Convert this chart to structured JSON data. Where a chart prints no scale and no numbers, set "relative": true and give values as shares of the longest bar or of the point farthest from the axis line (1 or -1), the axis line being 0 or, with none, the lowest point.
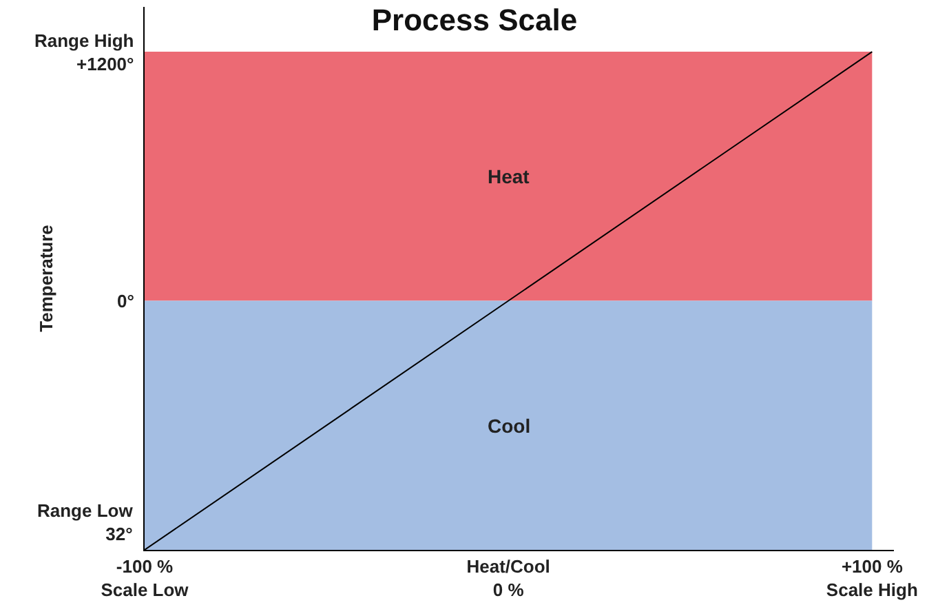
{
  "chart_data": {
    "type": "line",
    "title": "Process Scale",
    "ylabel": "Temperature",
    "relative": true,
    "x": [
      -100,
      100
    ],
    "series": [
      {
        "color": "#000000",
        "values": [
          0,
          1
        ]
      }
    ],
    "xlim": [
      -100,
      106
    ],
    "xticks": [
      {
        "value": -100,
        "label": "-100 %\nScale Low"
      },
      {
        "value": 0,
        "label": "Heat/Cool\n0 %"
      },
      {
        "value": 100,
        "label": "+100 %\nScale High"
      }
    ],
    "annotations": [
      "Range Low\n32°",
      "0°",
      "Range High\n+1200°"
    ],
    "bands": [
      {
        "axis": "y",
        "from": 0.5,
        "to": 1,
        "label": "Heat",
        "color": "#ec6a74"
      },
      {
        "axis": "y",
        "from": 0,
        "to": 0.5,
        "label": "Cool",
        "color": "#a4bee3"
      }
    ],
    "grid": false,
    "legend": false,
    "marker": "none",
    "line_style": "solid"
  }
}
